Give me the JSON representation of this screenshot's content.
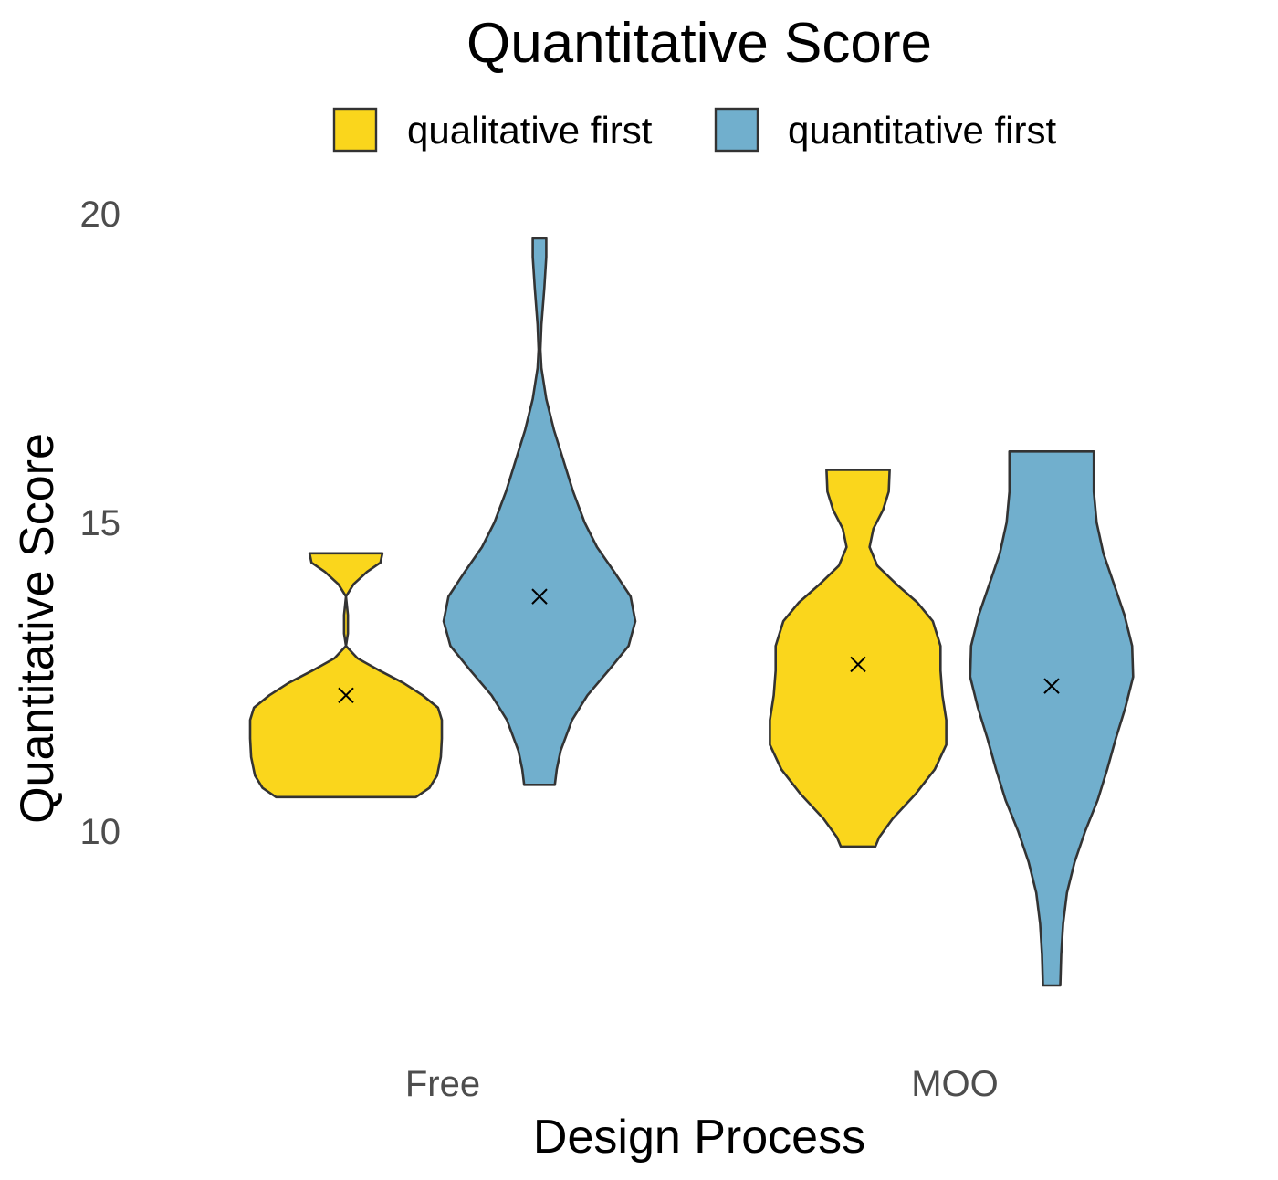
{
  "chart_data": {
    "type": "violin",
    "title": "Quantitative Score",
    "xlabel": "Design Process",
    "ylabel": "Quantitative Score",
    "categories": [
      "Free",
      "MOO"
    ],
    "ylim": [
      6.5,
      20.5
    ],
    "yticks": [
      10,
      15,
      20
    ],
    "grid": false,
    "legend_position": "top",
    "series": [
      {
        "name": "qualitative first",
        "color": "#fad61c",
        "groups": [
          {
            "category": "Free",
            "mean": 12.2,
            "min": 10.55,
            "max": 14.5,
            "density": [
              [
                10.55,
                0.73
              ],
              [
                10.7,
                0.87
              ],
              [
                10.9,
                0.95
              ],
              [
                11.2,
                0.99
              ],
              [
                11.5,
                1.0
              ],
              [
                11.8,
                1.0
              ],
              [
                12.0,
                0.96
              ],
              [
                12.2,
                0.8
              ],
              [
                12.4,
                0.6
              ],
              [
                12.6,
                0.35
              ],
              [
                12.8,
                0.12
              ],
              [
                13.0,
                0.0
              ],
              [
                13.2,
                -0.02
              ],
              [
                13.5,
                -0.02
              ],
              [
                13.8,
                0.0
              ],
              [
                14.0,
                0.08
              ],
              [
                14.2,
                0.22
              ],
              [
                14.35,
                0.36
              ],
              [
                14.5,
                0.38
              ]
            ]
          },
          {
            "category": "MOO",
            "mean": 12.7,
            "min": 9.75,
            "max": 15.85,
            "density": [
              [
                9.75,
                0.18
              ],
              [
                9.9,
                0.22
              ],
              [
                10.2,
                0.36
              ],
              [
                10.6,
                0.6
              ],
              [
                11.0,
                0.8
              ],
              [
                11.4,
                0.92
              ],
              [
                11.8,
                0.92
              ],
              [
                12.2,
                0.88
              ],
              [
                12.6,
                0.86
              ],
              [
                13.0,
                0.86
              ],
              [
                13.4,
                0.78
              ],
              [
                13.7,
                0.62
              ],
              [
                14.0,
                0.4
              ],
              [
                14.3,
                0.2
              ],
              [
                14.6,
                0.12
              ],
              [
                14.9,
                0.16
              ],
              [
                15.2,
                0.26
              ],
              [
                15.5,
                0.32
              ],
              [
                15.85,
                0.33
              ]
            ]
          }
        ]
      },
      {
        "name": "quantitative first",
        "color": "#71afcd",
        "groups": [
          {
            "category": "Free",
            "mean": 13.8,
            "min": 10.75,
            "max": 19.6,
            "density": [
              [
                10.75,
                0.16
              ],
              [
                11.0,
                0.18
              ],
              [
                11.3,
                0.22
              ],
              [
                11.8,
                0.34
              ],
              [
                12.2,
                0.5
              ],
              [
                12.6,
                0.72
              ],
              [
                13.0,
                0.93
              ],
              [
                13.4,
                1.0
              ],
              [
                13.8,
                0.95
              ],
              [
                14.2,
                0.78
              ],
              [
                14.6,
                0.6
              ],
              [
                15.0,
                0.47
              ],
              [
                15.5,
                0.35
              ],
              [
                16.0,
                0.25
              ],
              [
                16.5,
                0.15
              ],
              [
                17.0,
                0.07
              ],
              [
                17.5,
                0.02
              ],
              [
                17.8,
                0.01
              ],
              [
                18.2,
                0.02
              ],
              [
                18.8,
                0.05
              ],
              [
                19.3,
                0.07
              ],
              [
                19.6,
                0.07
              ]
            ]
          },
          {
            "category": "MOO",
            "mean": 12.35,
            "min": 7.5,
            "max": 16.15,
            "density": [
              [
                7.5,
                0.09
              ],
              [
                8.0,
                0.1
              ],
              [
                8.5,
                0.12
              ],
              [
                9.0,
                0.16
              ],
              [
                9.5,
                0.24
              ],
              [
                10.0,
                0.35
              ],
              [
                10.5,
                0.48
              ],
              [
                11.0,
                0.58
              ],
              [
                11.5,
                0.67
              ],
              [
                12.0,
                0.77
              ],
              [
                12.5,
                0.85
              ],
              [
                13.0,
                0.84
              ],
              [
                13.5,
                0.76
              ],
              [
                14.0,
                0.65
              ],
              [
                14.5,
                0.54
              ],
              [
                15.0,
                0.47
              ],
              [
                15.5,
                0.44
              ],
              [
                16.15,
                0.44
              ]
            ]
          }
        ]
      }
    ]
  }
}
